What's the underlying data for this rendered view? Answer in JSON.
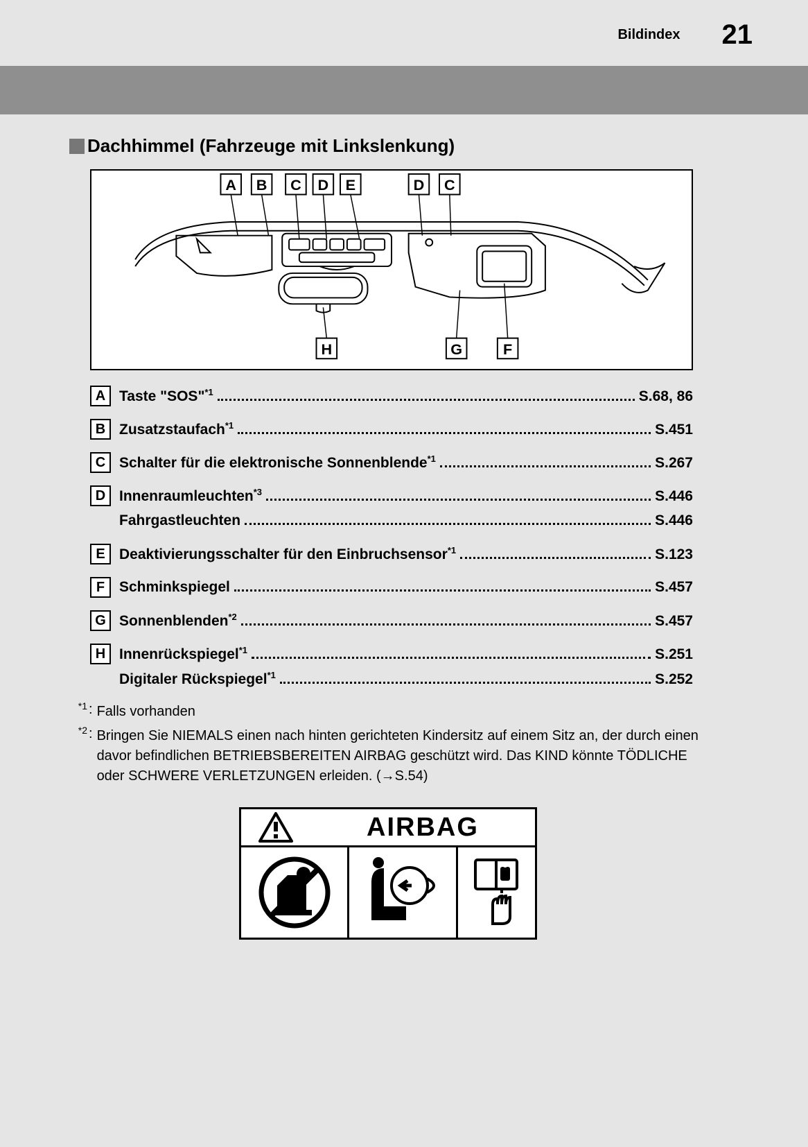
{
  "header": {
    "label": "Bildindex",
    "page_number": "21"
  },
  "section_title": "Dachhimmel (Fahrzeuge mit Linkslenkung)",
  "diagram": {
    "top_callouts": [
      "A",
      "B",
      "C",
      "D",
      "E",
      "D",
      "C"
    ],
    "bottom_callouts": [
      "H",
      "G",
      "F"
    ]
  },
  "entries": [
    {
      "letter": "A",
      "name": "Taste \"SOS\"",
      "sup": "*1",
      "page": "S.68, 86"
    },
    {
      "letter": "B",
      "name": "Zusatzstaufach",
      "sup": "*1",
      "page": "S.451"
    },
    {
      "letter": "C",
      "name": "Schalter für die elektronische Sonnenblende",
      "sup": "*1",
      "page": "S.267"
    },
    {
      "letter": "D",
      "name": "Innenraumleuchten",
      "sup": "*3",
      "page": "S.446"
    },
    {
      "letter": "",
      "name": "Fahrgastleuchten",
      "sup": "",
      "page": "S.446"
    },
    {
      "letter": "E",
      "name": "Deaktivierungsschalter für den Einbruchsensor",
      "sup": "*1",
      "page": "S.123"
    },
    {
      "letter": "F",
      "name": "Schminkspiegel",
      "sup": "",
      "page": "S.457"
    },
    {
      "letter": "G",
      "name": "Sonnenblenden",
      "sup": "*2",
      "page": "S.457"
    },
    {
      "letter": "H",
      "name": "Innenrückspiegel",
      "sup": "*1",
      "page": "S.251"
    },
    {
      "letter": "",
      "name": "Digitaler Rückspiegel",
      "sup": "*1",
      "page": "S.252"
    }
  ],
  "footnotes": [
    {
      "marker": "*1",
      "text": "Falls vorhanden"
    },
    {
      "marker": "*2",
      "text": "Bringen Sie NIEMALS einen nach hinten gerichteten Kindersitz auf einem Sitz an, der durch einen davor befindlichen BETRIEBSBEREITEN AIRBAG geschützt wird. Das KIND könnte TÖDLICHE oder SCHWERE VERLETZUNGEN erleiden. (→S.54)"
    }
  ],
  "airbag_label": "AIRBAG"
}
